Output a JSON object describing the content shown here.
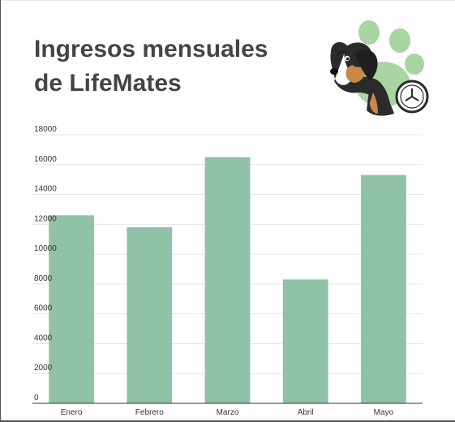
{
  "chart_data": {
    "type": "bar",
    "title_lines": [
      "Ingresos mensuales",
      "de LifeMates"
    ],
    "categories": [
      "Enero",
      "Febrero",
      "Marzo",
      "Abril",
      "Mayo"
    ],
    "values": [
      12600,
      11800,
      16500,
      8300,
      15300
    ],
    "ylim": [
      0,
      18000
    ],
    "yticks": [
      0,
      2000,
      4000,
      6000,
      8000,
      10000,
      12000,
      14000,
      16000,
      18000
    ],
    "grid": true,
    "bar_color": "#8fc2a6",
    "grid_color": "#e6e6e6",
    "axis_color": "#333333"
  },
  "mascot": {
    "icon": "dachshund-paw-clock-icon",
    "paw_color": "#a8d5a2",
    "dog_color": "#2b2b2b",
    "tan_color": "#c8884a"
  }
}
